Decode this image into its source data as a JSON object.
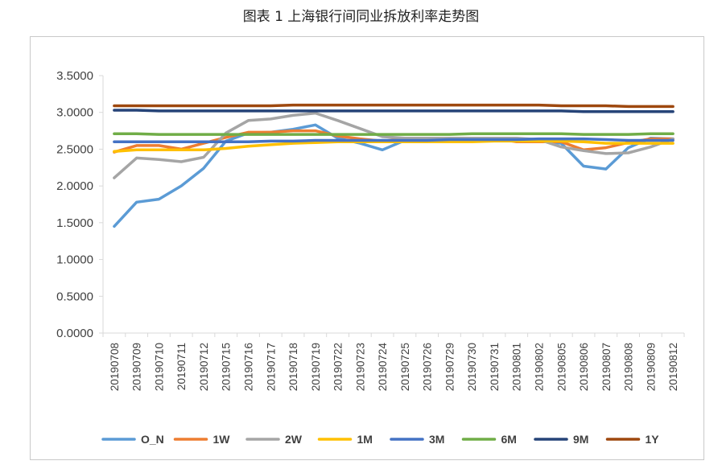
{
  "title": "图表 1  上海银行间同业拆放利率走势图",
  "chart_data": {
    "type": "line",
    "title": "图表 1  上海银行间同业拆放利率走势图",
    "xlabel": "",
    "ylabel": "",
    "ylim": [
      0,
      3.5
    ],
    "yticks": [
      "0.0000",
      "0.5000",
      "1.0000",
      "1.5000",
      "2.0000",
      "2.5000",
      "3.0000",
      "3.5000"
    ],
    "legend_position": "bottom",
    "grid": false,
    "categories": [
      "20190708",
      "20190709",
      "20190710",
      "20190711",
      "20190712",
      "20190715",
      "20190716",
      "20190717",
      "20190718",
      "20190719",
      "20190722",
      "20190723",
      "20190724",
      "20190725",
      "20190726",
      "20190729",
      "20190730",
      "20190731",
      "20190801",
      "20190802",
      "20190805",
      "20190806",
      "20190807",
      "20190808",
      "20190809",
      "20190812"
    ],
    "series": [
      {
        "name": "O_N",
        "color": "#5b9bd5",
        "values": [
          1.45,
          1.78,
          1.82,
          2.0,
          2.24,
          2.61,
          2.72,
          2.73,
          2.77,
          2.83,
          2.65,
          2.58,
          2.49,
          2.62,
          2.62,
          2.62,
          2.62,
          2.62,
          2.62,
          2.61,
          2.58,
          2.27,
          2.23,
          2.52,
          2.65,
          2.64
        ]
      },
      {
        "name": "1W",
        "color": "#ed7d31",
        "values": [
          2.46,
          2.55,
          2.55,
          2.5,
          2.58,
          2.66,
          2.73,
          2.73,
          2.75,
          2.75,
          2.68,
          2.64,
          2.61,
          2.64,
          2.64,
          2.64,
          2.65,
          2.65,
          2.6,
          2.6,
          2.6,
          2.49,
          2.52,
          2.59,
          2.64,
          2.64
        ]
      },
      {
        "name": "2W",
        "color": "#a5a5a5",
        "values": [
          2.11,
          2.38,
          2.36,
          2.33,
          2.39,
          2.72,
          2.89,
          2.91,
          2.96,
          2.99,
          2.89,
          2.78,
          2.67,
          2.65,
          2.65,
          2.65,
          2.65,
          2.65,
          2.65,
          2.63,
          2.53,
          2.48,
          2.44,
          2.45,
          2.53,
          2.64
        ]
      },
      {
        "name": "1M",
        "color": "#ffc000",
        "values": [
          2.47,
          2.49,
          2.49,
          2.49,
          2.49,
          2.51,
          2.54,
          2.56,
          2.58,
          2.59,
          2.6,
          2.6,
          2.6,
          2.6,
          2.6,
          2.6,
          2.6,
          2.61,
          2.61,
          2.61,
          2.61,
          2.6,
          2.58,
          2.58,
          2.58,
          2.58
        ]
      },
      {
        "name": "3M",
        "color": "#4472c4",
        "values": [
          2.6,
          2.6,
          2.6,
          2.6,
          2.6,
          2.6,
          2.6,
          2.61,
          2.61,
          2.62,
          2.62,
          2.62,
          2.62,
          2.62,
          2.62,
          2.63,
          2.63,
          2.63,
          2.63,
          2.64,
          2.64,
          2.64,
          2.63,
          2.62,
          2.62,
          2.62
        ]
      },
      {
        "name": "6M",
        "color": "#70ad47",
        "values": [
          2.71,
          2.71,
          2.7,
          2.7,
          2.7,
          2.7,
          2.7,
          2.7,
          2.7,
          2.7,
          2.7,
          2.7,
          2.7,
          2.7,
          2.7,
          2.7,
          2.71,
          2.71,
          2.71,
          2.71,
          2.71,
          2.7,
          2.7,
          2.7,
          2.71,
          2.71
        ]
      },
      {
        "name": "9M",
        "color": "#264478",
        "values": [
          3.03,
          3.03,
          3.02,
          3.02,
          3.02,
          3.02,
          3.02,
          3.02,
          3.02,
          3.02,
          3.02,
          3.02,
          3.02,
          3.02,
          3.02,
          3.02,
          3.02,
          3.02,
          3.02,
          3.02,
          3.02,
          3.01,
          3.01,
          3.01,
          3.01,
          3.01
        ]
      },
      {
        "name": "1Y",
        "color": "#9e480e",
        "values": [
          3.09,
          3.09,
          3.09,
          3.09,
          3.09,
          3.09,
          3.09,
          3.09,
          3.1,
          3.1,
          3.1,
          3.1,
          3.1,
          3.1,
          3.1,
          3.1,
          3.1,
          3.1,
          3.1,
          3.1,
          3.09,
          3.09,
          3.09,
          3.08,
          3.08,
          3.08
        ]
      }
    ]
  }
}
